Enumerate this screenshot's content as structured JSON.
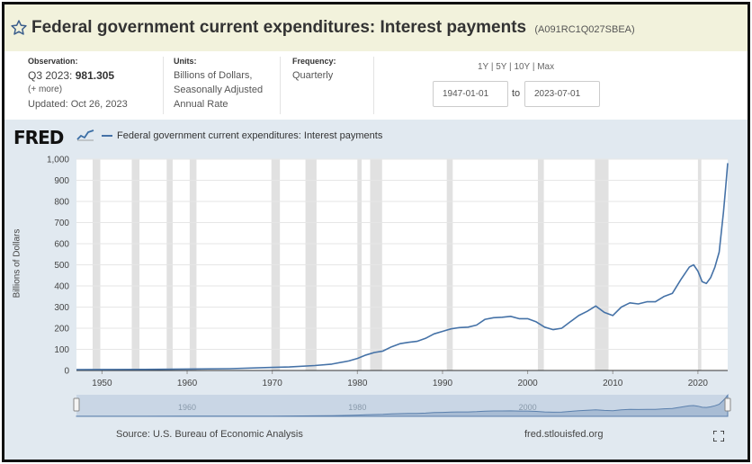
{
  "header": {
    "title": "Federal government current expenditures: Interest payments",
    "series_id": "(A091RC1Q027SBEA)"
  },
  "meta": {
    "observation_label": "Observation:",
    "observation_period": "Q3 2023:",
    "observation_value": "981.305",
    "more": "(+ more)",
    "updated": "Updated: Oct 26, 2023",
    "units_label": "Units:",
    "units_line1": "Billions of Dollars,",
    "units_line2": "Seasonally Adjusted",
    "units_line3": "Annual Rate",
    "frequency_label": "Frequency:",
    "frequency_value": "Quarterly"
  },
  "range_buttons": [
    "1Y",
    "5Y",
    "10Y",
    "Max"
  ],
  "date_range": {
    "start": "1947-01-01",
    "to_label": "to",
    "end": "2023-07-01"
  },
  "logo_text": "FRED",
  "footer": {
    "source": "Source: U.S. Bureau of Economic Analysis",
    "url": "fred.stlouisfed.org"
  },
  "colors": {
    "line": "#4572a7",
    "recession": "#e1e1e1",
    "header_bg": "#f2f2dc",
    "chart_bg": "#e1e9f0"
  },
  "icons": {
    "favorite": "star-icon",
    "fullscreen": "expand-icon"
  },
  "chart_data": {
    "type": "line",
    "title": "Federal government current expenditures: Interest payments",
    "xlabel": "",
    "ylabel": "Billions of Dollars",
    "xlim": [
      1947.0,
      2023.5
    ],
    "ylim": [
      0,
      1000
    ],
    "y_ticks": [
      0,
      100,
      200,
      300,
      400,
      500,
      600,
      700,
      800,
      900,
      1000
    ],
    "y_tick_labels": [
      "0",
      "100",
      "200",
      "300",
      "400",
      "500",
      "600",
      "700",
      "800",
      "900",
      "1,000"
    ],
    "x_ticks": [
      1950,
      1960,
      1970,
      1980,
      1990,
      2000,
      2010,
      2020
    ],
    "x_tick_labels": [
      "1950",
      "1960",
      "1970",
      "1980",
      "1990",
      "2000",
      "2010",
      "2020"
    ],
    "navigator_labels": [
      "1960",
      "1980",
      "2000"
    ],
    "recessions": [
      [
        1948.9,
        1949.8
      ],
      [
        1953.5,
        1954.4
      ],
      [
        1957.6,
        1958.3
      ],
      [
        1960.3,
        1961.1
      ],
      [
        1969.9,
        1970.9
      ],
      [
        1973.9,
        1975.2
      ],
      [
        1980.0,
        1980.5
      ],
      [
        1981.5,
        1982.9
      ],
      [
        1990.5,
        1991.2
      ],
      [
        2001.2,
        2001.9
      ],
      [
        2007.9,
        2009.5
      ],
      [
        2020.0,
        2020.4
      ]
    ],
    "grid": true,
    "legend": "top-left",
    "series": [
      {
        "name": "Federal government current expenditures: Interest payments",
        "points": [
          [
            1947,
            4.2
          ],
          [
            1950,
            4.5
          ],
          [
            1955,
            5.0
          ],
          [
            1960,
            7.0
          ],
          [
            1965,
            8.6
          ],
          [
            1970,
            14.5
          ],
          [
            1972,
            16.5
          ],
          [
            1975,
            23.5
          ],
          [
            1977,
            30.0
          ],
          [
            1979,
            45.0
          ],
          [
            1980,
            57.0
          ],
          [
            1981,
            73.0
          ],
          [
            1982,
            85.0
          ],
          [
            1983,
            92.0
          ],
          [
            1984,
            112.0
          ],
          [
            1985,
            127.0
          ],
          [
            1986,
            133.0
          ],
          [
            1987,
            138.0
          ],
          [
            1988,
            152.0
          ],
          [
            1989,
            173.0
          ],
          [
            1990,
            185.0
          ],
          [
            1991,
            197.0
          ],
          [
            1992,
            203.0
          ],
          [
            1993,
            205.0
          ],
          [
            1994,
            215.0
          ],
          [
            1995,
            242.0
          ],
          [
            1996,
            250.0
          ],
          [
            1997,
            252.0
          ],
          [
            1998,
            256.0
          ],
          [
            1999,
            245.0
          ],
          [
            2000,
            245.0
          ],
          [
            2001,
            230.0
          ],
          [
            2002,
            205.0
          ],
          [
            2003,
            193.0
          ],
          [
            2004,
            200.0
          ],
          [
            2005,
            230.0
          ],
          [
            2006,
            260.0
          ],
          [
            2007,
            280.0
          ],
          [
            2008,
            305.0
          ],
          [
            2009,
            275.0
          ],
          [
            2010,
            260.0
          ],
          [
            2011,
            300.0
          ],
          [
            2012,
            320.0
          ],
          [
            2013,
            315.0
          ],
          [
            2014,
            325.0
          ],
          [
            2015,
            325.0
          ],
          [
            2016,
            350.0
          ],
          [
            2017,
            365.0
          ],
          [
            2018,
            430.0
          ],
          [
            2019,
            490.0
          ],
          [
            2019.5,
            500.0
          ],
          [
            2020.0,
            470.0
          ],
          [
            2020.5,
            420.0
          ],
          [
            2021.0,
            412.0
          ],
          [
            2021.5,
            440.0
          ],
          [
            2022.0,
            490.0
          ],
          [
            2022.5,
            560.0
          ],
          [
            2023.0,
            750.0
          ],
          [
            2023.25,
            860.0
          ],
          [
            2023.5,
            981.305
          ]
        ]
      }
    ]
  }
}
